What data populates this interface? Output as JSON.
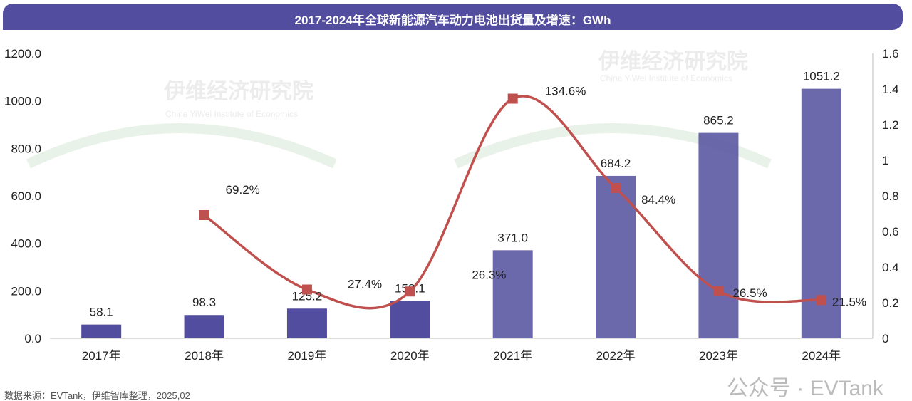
{
  "title": "2017-2024年全球新能源汽车动力电池出货量及增速：GWh",
  "source": "数据来源：EVTank，伊维智库整理，2025,02",
  "watermark": {
    "brand": "伊维经济研究院",
    "sub": "China YiWei Institute of Economics",
    "logo": "EVTank",
    "wechat": "公众号 · EVTank"
  },
  "colors": {
    "bar": "#524d9e",
    "line": "#c0504d",
    "marker": "#c0504d",
    "title_bg": "#524d9e"
  },
  "chart_data": {
    "type": "bar+line",
    "categories": [
      "2017年",
      "2018年",
      "2019年",
      "2020年",
      "2021年",
      "2022年",
      "2023年",
      "2024年"
    ],
    "series": [
      {
        "type": "bar",
        "axis": "left",
        "values": [
          58.1,
          98.3,
          125.2,
          158.1,
          371.0,
          684.2,
          865.2,
          1051.2
        ],
        "labels": [
          "58.1",
          "98.3",
          "125.2",
          "158.1",
          "371.0",
          "684.2",
          "865.2",
          "1051.2"
        ]
      },
      {
        "type": "line",
        "axis": "right",
        "values": [
          null,
          0.692,
          0.274,
          0.263,
          1.346,
          0.844,
          0.265,
          0.215
        ],
        "labels": [
          null,
          "69.2%",
          "27.4%",
          "26.3%",
          "134.6%",
          "84.4%",
          "26.5%",
          "21.5%"
        ]
      }
    ],
    "left_axis": {
      "ylim": [
        0,
        1200
      ],
      "ticks": [
        "0.0",
        "200.0",
        "400.0",
        "600.0",
        "800.0",
        "1000.0",
        "1200.0"
      ]
    },
    "right_axis": {
      "ylim": [
        0,
        1.6
      ],
      "ticks": [
        "0",
        "0.2",
        "0.4",
        "0.6",
        "0.8",
        "1",
        "1.2",
        "1.4",
        "1.6"
      ]
    },
    "grid": false,
    "legend": "none"
  }
}
